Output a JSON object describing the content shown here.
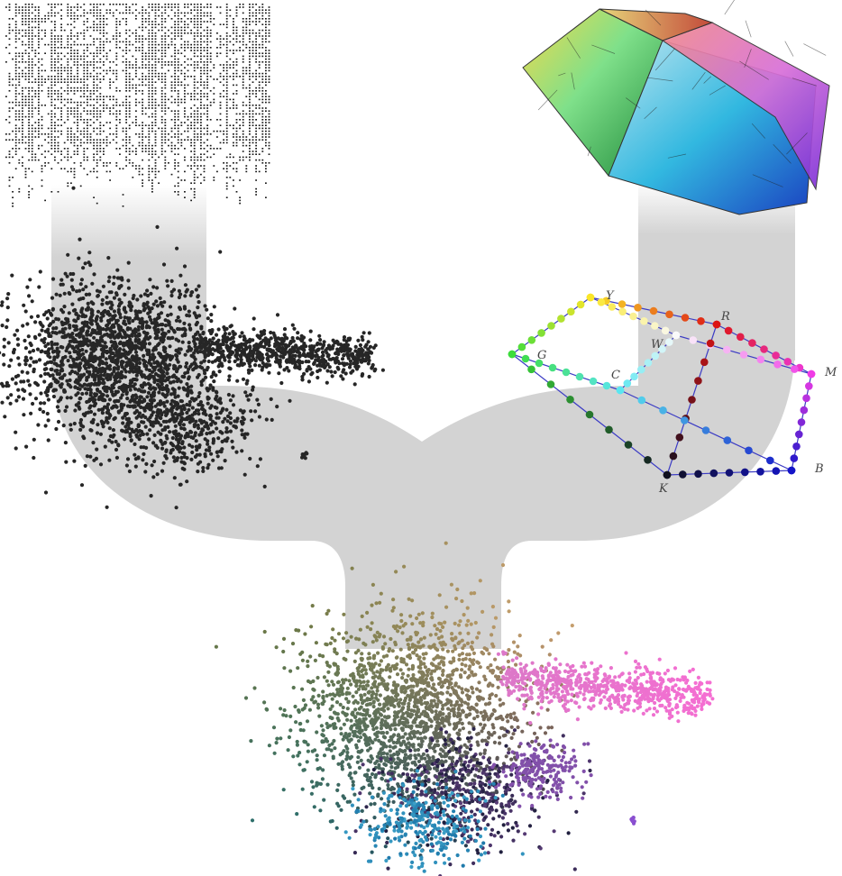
{
  "diagram": {
    "colors": {
      "background": "#ffffff",
      "channel": "#d3d3d3",
      "scatter_dark": "#262626",
      "ramp_line": "#3b3bc4",
      "vertex_label": "#444444"
    },
    "panels": [
      {
        "name": "data-matrix",
        "description_icon": "raw-data-matrix-icon"
      },
      {
        "name": "gray-embedding",
        "description_icon": "scatter-plot-icon"
      },
      {
        "name": "color-solid",
        "description_icon": "3d-color-solid-icon"
      },
      {
        "name": "color-ramp-graph",
        "description_icon": "color-graph-icon"
      },
      {
        "name": "colored-embedding",
        "description_icon": "colored-scatter-icon"
      }
    ],
    "ramp_vertices": {
      "Y": "Y",
      "R": "R",
      "W": "W",
      "M": "M",
      "G": "G",
      "C": "C",
      "B": "B",
      "K": "K"
    }
  }
}
